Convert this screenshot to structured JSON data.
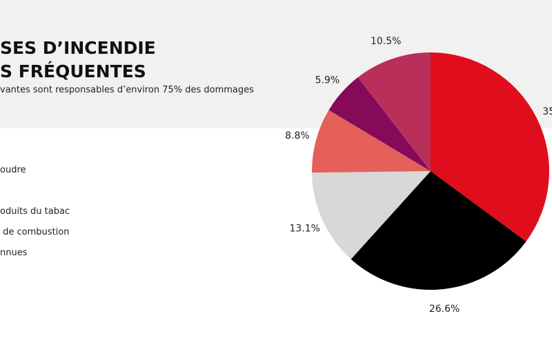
{
  "chart_data": {
    "type": "pie",
    "title_lines": [
      "SES D’INCENDIE",
      "S FRÉQUENTES"
    ],
    "subtitle": "vantes sont responsables d’environ 75% des dommages",
    "legend_labels": [
      "oudre",
      "oduits du tabac",
      " de combustion",
      "nnues"
    ],
    "values": [
      35.1,
      26.6,
      13.1,
      8.8,
      5.9,
      10.5
    ],
    "value_labels": [
      "35",
      "26.6%",
      "13.1%",
      "8.8%",
      "5.9%",
      "10.5%"
    ],
    "colors": [
      "#e00e1c",
      "#000000",
      "#d8d8d8",
      "#e5605a",
      "#86095a",
      "#b8305a"
    ]
  }
}
